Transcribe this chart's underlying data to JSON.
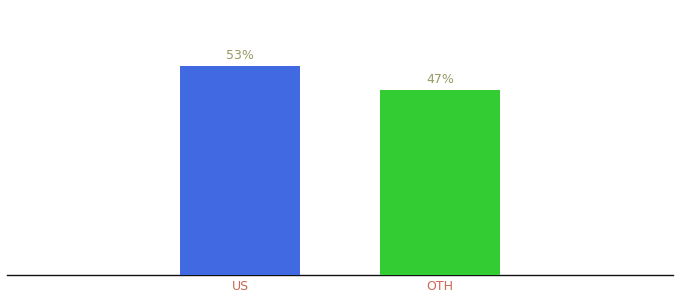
{
  "categories": [
    "US",
    "OTH"
  ],
  "values": [
    53,
    47
  ],
  "bar_colors": [
    "#4169e1",
    "#33cc33"
  ],
  "label_texts": [
    "53%",
    "47%"
  ],
  "label_color": "#999966",
  "tick_color": "#cc6655",
  "background_color": "#ffffff",
  "ylim": [
    0,
    68
  ],
  "bar_width": 0.18,
  "figsize": [
    6.8,
    3.0
  ],
  "dpi": 100
}
